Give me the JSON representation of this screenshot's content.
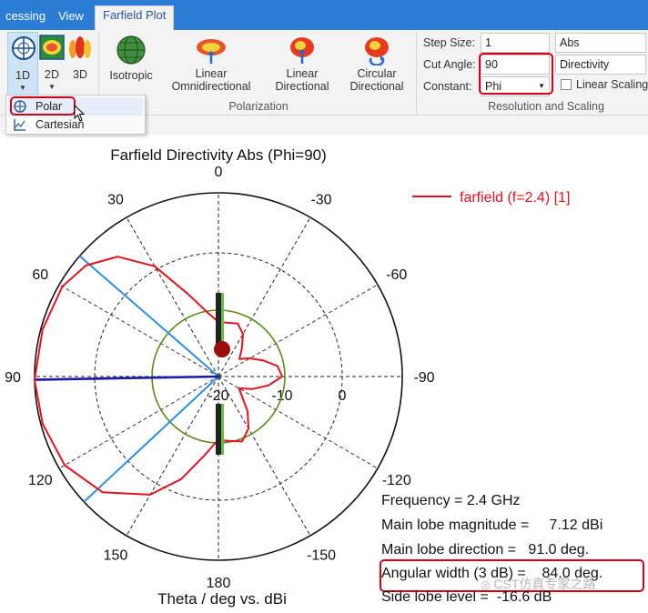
{
  "tabs": [
    {
      "label": "cessing"
    },
    {
      "label": "View"
    },
    {
      "label": "Farfield Plot"
    }
  ],
  "ribbon": {
    "plot_type_buttons": [
      {
        "label": "1D",
        "icon": "polar-grid-icon"
      },
      {
        "label": "2D",
        "icon": "heatmap-2d-icon"
      },
      {
        "label": "3D",
        "icon": "pattern-3d-icon"
      }
    ],
    "isotropic_label": "Isotropic",
    "polarization_buttons": [
      {
        "label": "Linear Omnidirectional"
      },
      {
        "label": "Linear Directional"
      },
      {
        "label": "Circular Directional"
      }
    ],
    "polarization_group_label": "Polarization",
    "step_size_label": "Step Size:",
    "step_size_value": "1",
    "cut_angle_label": "Cut Angle:",
    "cut_angle_value": "90",
    "constant_label": "Constant:",
    "constant_value": "Phi",
    "scale_mode": "Abs",
    "quantity": "Directivity",
    "linear_scaling_label": "Linear Scaling",
    "linear_scaling_checked": false,
    "resolution_group_label": "Resolution and Scaling"
  },
  "dropdown_menu": {
    "items": [
      {
        "label": "Polar",
        "icon": "polar-icon",
        "highlighted": true
      },
      {
        "label": "Cartesian",
        "icon": "cartesian-icon",
        "highlighted": false
      }
    ]
  },
  "plot": {
    "title": "Farfield Directivity Abs (Phi=90)",
    "legend": "farfield (f=2.4) [1]",
    "xlabel": "Theta / deg vs. dBi",
    "angle_labels": [
      "0",
      "30",
      "-30",
      "60",
      "-60",
      "90",
      "-90",
      "120",
      "-120",
      "150",
      "-150",
      "180"
    ],
    "radial_labels": [
      "-20",
      "-10",
      "0"
    ],
    "info": {
      "frequency": "Frequency = 2.4 GHz",
      "main_lobe_magnitude": "Main lobe magnitude =     7.12 dBi",
      "main_lobe_direction": "Main lobe direction =   91.0 deg.",
      "angular_width": "Angular width (3 dB) =    84.0 deg.",
      "side_lobe_level": "Side lobe level =  -16.6 dB"
    },
    "watermark": "CST仿真专家之路",
    "colors": {
      "pattern": "#e0141e",
      "beamwidth_lines": "#2f8de4",
      "main_lobe_line": "#1a1aa8",
      "minus3db_circle": "#5a8a1a",
      "tab_bar": "#2b7cd3",
      "highlight_box": "#d0021b"
    }
  }
}
